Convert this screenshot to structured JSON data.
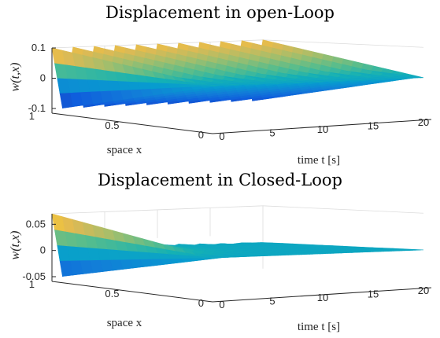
{
  "chart_data": [
    {
      "type": "surface",
      "title": "Displacement in open-Loop",
      "xlabel": "space x",
      "ylabel": "time t [s]",
      "zlabel": "w(t,x)",
      "xlim": [
        0,
        1
      ],
      "ylim": [
        0,
        20
      ],
      "zlim": [
        -0.1,
        0.1
      ],
      "x_ticks": [
        "0",
        "0.5",
        "1"
      ],
      "y_ticks": [
        "0",
        "5",
        "10",
        "15",
        "20"
      ],
      "z_ticks": [
        "-0.1",
        "0",
        "0.1"
      ],
      "x": [
        0,
        0.25,
        0.5,
        0.75,
        1
      ],
      "t": [
        0,
        1,
        2,
        3,
        4,
        5,
        6,
        7,
        8,
        9,
        10,
        11,
        12,
        13,
        14,
        15,
        16,
        17,
        18,
        19,
        20
      ],
      "w_at_x1": [
        0.1,
        -0.1,
        0.1,
        -0.1,
        0.1,
        -0.1,
        0.1,
        -0.1,
        0.1,
        -0.1,
        0.1,
        -0.1,
        0.1,
        -0.1,
        0.1,
        -0.1,
        0.1,
        -0.1,
        0.1,
        -0.1,
        0.1
      ],
      "colormap": "parula"
    },
    {
      "type": "surface",
      "title": "Displacement in Closed-Loop",
      "xlabel": "space x",
      "ylabel": "time t [s]",
      "zlabel": "w(t,x)",
      "xlim": [
        0,
        1
      ],
      "ylim": [
        0,
        20
      ],
      "zlim": [
        -0.05,
        0.07
      ],
      "x_ticks": [
        "0",
        "0.5",
        "1"
      ],
      "y_ticks": [
        "0",
        "5",
        "10",
        "15",
        "20"
      ],
      "z_ticks": [
        "-0.05",
        "0",
        "0.05"
      ],
      "x": [
        0,
        0.25,
        0.5,
        0.75,
        1
      ],
      "t": [
        0,
        1,
        2,
        3,
        4,
        5,
        6,
        7,
        8,
        9,
        10,
        11,
        12,
        13,
        14,
        15,
        16,
        17,
        18,
        19,
        20
      ],
      "w_at_x1": [
        0.07,
        -0.05,
        0.04,
        -0.025,
        0.02,
        -0.015,
        0.012,
        -0.008,
        0.007,
        -0.005,
        0.004,
        -0.003,
        0.003,
        -0.002,
        0.002,
        -0.001,
        0.001,
        -0.001,
        0.001,
        0,
        0
      ],
      "colormap": "parula"
    }
  ]
}
